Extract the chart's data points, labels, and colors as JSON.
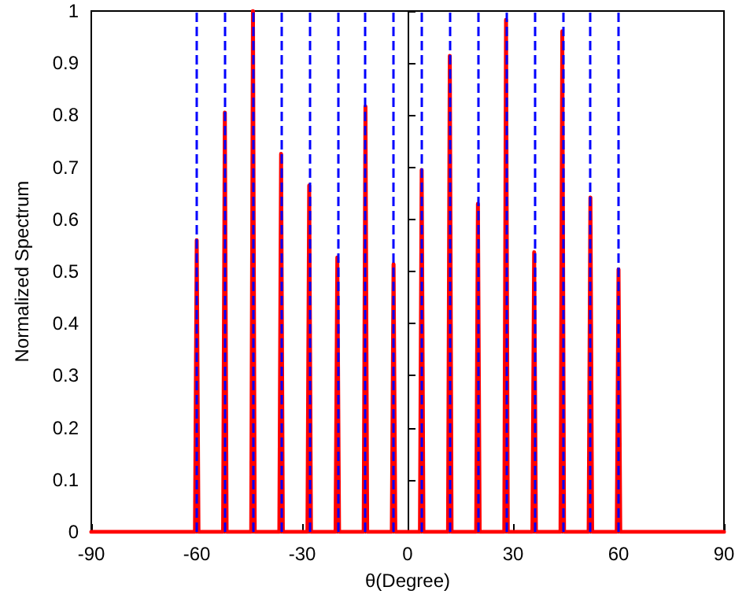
{
  "chart_data": {
    "type": "line",
    "xlabel": "θ(Degree)",
    "ylabel": "Normalized Spectrum",
    "x": [
      -90,
      -60.5,
      -60,
      -59.5,
      -52.5,
      -52,
      -51.5,
      -44.5,
      -44,
      -43.5,
      -36.5,
      -36,
      -35.5,
      -28.5,
      -28,
      -27.5,
      -20.5,
      -20,
      -19.5,
      -12.5,
      -12,
      -11.5,
      -4.5,
      -4,
      -3.5,
      3.5,
      4,
      4.5,
      11.5,
      12,
      12.5,
      19.5,
      20,
      20.5,
      27.5,
      28,
      28.5,
      35.5,
      36,
      36.5,
      43.5,
      44,
      44.5,
      51.5,
      52,
      52.5,
      59.5,
      60,
      60.5,
      90
    ],
    "series": [
      {
        "color": "#ff0000",
        "values": [
          0,
          0,
          0.56,
          0,
          0,
          0.805,
          0,
          0,
          1.0,
          0,
          0,
          0.726,
          0,
          0,
          0.665,
          0,
          0,
          0.527,
          0,
          0,
          0.817,
          0,
          0,
          0.514,
          0,
          0,
          0.695,
          0,
          0,
          0.914,
          0,
          0,
          0.63,
          0,
          0,
          0.983,
          0,
          0,
          0.537,
          0,
          0,
          0.961,
          0,
          0,
          0.642,
          0,
          0,
          0.504,
          0,
          0
        ]
      }
    ],
    "xlim": [
      -90,
      90
    ],
    "xticks": [
      -90,
      -60,
      -30,
      0,
      30,
      60,
      90
    ],
    "ylim": [
      0,
      1
    ],
    "yticks": [
      0,
      0.1,
      0.2,
      0.3,
      0.4,
      0.5,
      0.6,
      0.7,
      0.8,
      0.9,
      1
    ],
    "ref_lines": [
      {
        "axis": "x",
        "value": -60,
        "color": "#0000ff",
        "line_style": "dashed"
      },
      {
        "axis": "x",
        "value": -52,
        "color": "#0000ff",
        "line_style": "dashed"
      },
      {
        "axis": "x",
        "value": -44,
        "color": "#0000ff",
        "line_style": "dashed"
      },
      {
        "axis": "x",
        "value": -36,
        "color": "#0000ff",
        "line_style": "dashed"
      },
      {
        "axis": "x",
        "value": -28,
        "color": "#0000ff",
        "line_style": "dashed"
      },
      {
        "axis": "x",
        "value": -20,
        "color": "#0000ff",
        "line_style": "dashed"
      },
      {
        "axis": "x",
        "value": -12,
        "color": "#0000ff",
        "line_style": "dashed"
      },
      {
        "axis": "x",
        "value": -4,
        "color": "#0000ff",
        "line_style": "dashed"
      },
      {
        "axis": "x",
        "value": 4,
        "color": "#0000ff",
        "line_style": "dashed"
      },
      {
        "axis": "x",
        "value": 12,
        "color": "#0000ff",
        "line_style": "dashed"
      },
      {
        "axis": "x",
        "value": 20,
        "color": "#0000ff",
        "line_style": "dashed"
      },
      {
        "axis": "x",
        "value": 28,
        "color": "#0000ff",
        "line_style": "dashed"
      },
      {
        "axis": "x",
        "value": 36,
        "color": "#0000ff",
        "line_style": "dashed"
      },
      {
        "axis": "x",
        "value": 44,
        "color": "#0000ff",
        "line_style": "dashed"
      },
      {
        "axis": "x",
        "value": 52,
        "color": "#0000ff",
        "line_style": "dashed"
      },
      {
        "axis": "x",
        "value": 60,
        "color": "#0000ff",
        "line_style": "dashed"
      }
    ],
    "grid": false,
    "marker": "none",
    "line_style": "solid"
  }
}
